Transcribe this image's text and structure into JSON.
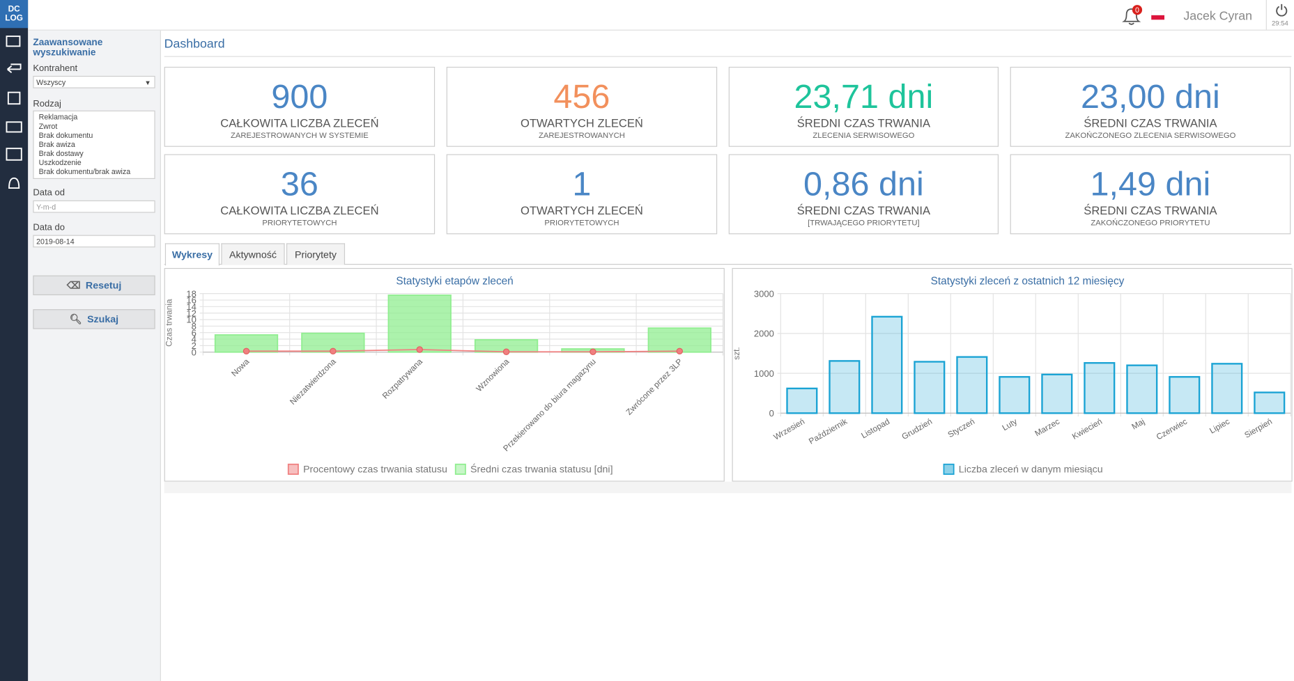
{
  "header": {
    "user": "Jacek Cyran",
    "notifications": "0",
    "timer": "29:54",
    "logo_top": "DC",
    "logo_bottom": "LOG"
  },
  "sidebar": {
    "title": "Zaawansowane wyszukiwanie",
    "kontrahent_label": "Kontrahent",
    "kontrahent_value": "Wszyscy",
    "rodzaj_label": "Rodzaj",
    "rodzaj_options": [
      "Reklamacja",
      "Zwrot",
      "Brak dokumentu",
      "Brak awiza",
      "Brak dostawy",
      "Uszkodzenie",
      "Brak dokumentu/brak awiza"
    ],
    "date_from_label": "Data od",
    "date_from_placeholder": "Y-m-d",
    "date_to_label": "Data do",
    "date_to_value": "2019-08-14",
    "reset_button": "Resetuj",
    "search_button": "Szukaj"
  },
  "page_title": "Dashboard",
  "stats": [
    {
      "value": "900",
      "label": "CAŁKOWITA LICZBA ZLECEŃ",
      "sub": "ZAREJESTROWANYCH W SYSTEMIE",
      "color": "#4a86c5"
    },
    {
      "value": "456",
      "label": "OTWARTYCH ZLECEŃ",
      "sub": "ZAREJESTROWANYCH",
      "color": "#f2905c"
    },
    {
      "value": "23,71 dni",
      "label": "ŚREDNI CZAS TRWANIA",
      "sub": "ZLECENIA SERWISOWEGO",
      "color": "#1ec49b"
    },
    {
      "value": "23,00 dni",
      "label": "ŚREDNI CZAS TRWANIA",
      "sub": "ZAKOŃCZONEGO ZLECENIA SERWISOWEGO",
      "color": "#4a86c5"
    },
    {
      "value": "36",
      "label": "CAŁKOWITA LICZBA ZLECEŃ",
      "sub": "PRIORYTETOWYCH",
      "color": "#4a86c5"
    },
    {
      "value": "1",
      "label": "OTWARTYCH ZLECEŃ",
      "sub": "PRIORYTETOWYCH",
      "color": "#4a86c5"
    },
    {
      "value": "0,86 dni",
      "label": "ŚREDNI CZAS TRWANIA",
      "sub": "[TRWAJĄCEGO PRIORYTETU]",
      "color": "#4a86c5"
    },
    {
      "value": "1,49 dni",
      "label": "ŚREDNI CZAS TRWANIA",
      "sub": "ZAKOŃCZONEGO PRIORYTETU",
      "color": "#4a86c5"
    }
  ],
  "tabs": [
    "Wykresy",
    "Aktywność",
    "Priorytety"
  ],
  "chart_data": [
    {
      "type": "bar",
      "title": "Statystyki etapów zleceń",
      "y_label": "Czas trwania",
      "categories": [
        "Nowa",
        "Niezatwierdzona",
        "Rozpatrywana",
        "Wznowiona",
        "Przekierowano do biura magazynu",
        "Zwrócone przez 3LP"
      ],
      "series": [
        {
          "name": "Procentowy czas trwania statusu",
          "color": "#f08080",
          "type": "line",
          "values": [
            0.3,
            0.3,
            0.8,
            0.1,
            0.1,
            0.3
          ]
        },
        {
          "name": "Średni czas trwania statusu [dni]",
          "color": "#90ee90",
          "values": [
            5.3,
            5.8,
            17.5,
            3.8,
            1.0,
            7.4
          ]
        }
      ],
      "ylim": [
        0,
        18
      ],
      "yticks": [
        0,
        2,
        4,
        6,
        8,
        10,
        12,
        14,
        16,
        18
      ],
      "grid": true,
      "legend": "bottom"
    },
    {
      "type": "bar",
      "title": "Statystyki zleceń z ostatnich 12 miesięcy",
      "y_label": "szt.",
      "categories": [
        "Wrzesień",
        "Październik",
        "Listopad",
        "Grudzień",
        "Styczeń",
        "Luty",
        "Marzec",
        "Kwiecień",
        "Maj",
        "Czerwiec",
        "Lipiec",
        "Sierpień"
      ],
      "series": [
        {
          "name": "Liczba zleceń w danym miesiącu",
          "color": "#1aa3d4",
          "values": [
            620,
            1310,
            2420,
            1290,
            1410,
            910,
            970,
            1260,
            1200,
            910,
            1240,
            520
          ]
        }
      ],
      "ylim": [
        0,
        3000
      ],
      "yticks": [
        0,
        1000,
        2000,
        3000
      ],
      "grid": true,
      "legend": "bottom"
    }
  ]
}
